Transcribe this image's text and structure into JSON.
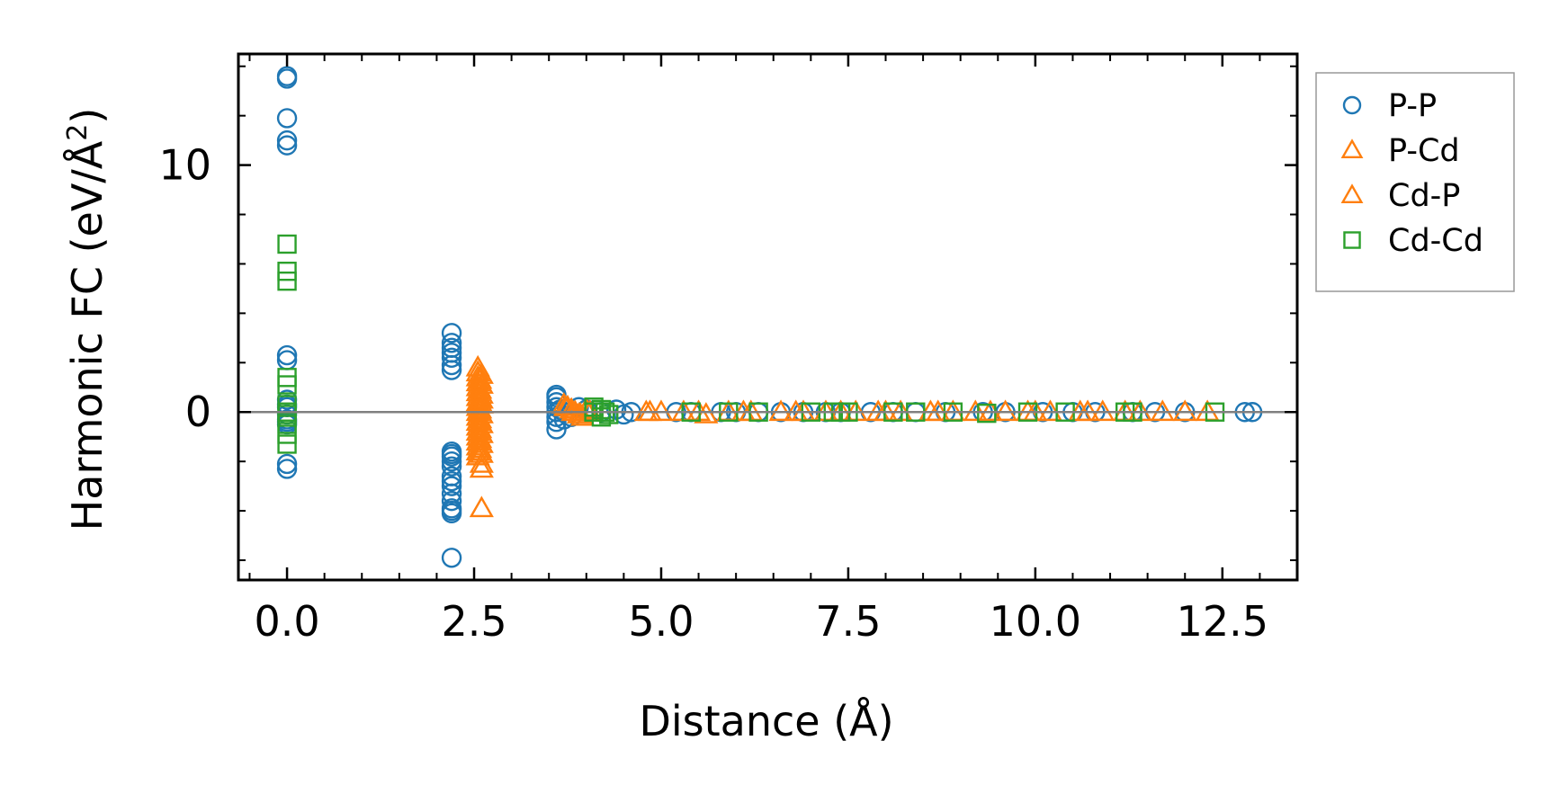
{
  "chart_data": {
    "type": "scatter",
    "title": "",
    "xlabel": "Distance (Å)",
    "ylabel_main": "Harmonic FC (eV/Å",
    "ylabel_sup": "2",
    "ylabel_close": ")",
    "xlim": [
      -0.65,
      13.5
    ],
    "ylim": [
      -6.8,
      14.5
    ],
    "xticks": [
      0.0,
      2.5,
      5.0,
      7.5,
      10.0,
      12.5
    ],
    "xtick_labels": [
      "0.0",
      "2.5",
      "5.0",
      "7.5",
      "10.0",
      "12.5"
    ],
    "yticks": [
      0,
      10
    ],
    "ytick_labels": [
      "0",
      "10"
    ],
    "zero_line": true,
    "grid": false,
    "legend_position": "outside-right",
    "series": [
      {
        "name": "P-P",
        "marker": "circle",
        "color": "#1f77b4",
        "x": [
          0,
          0,
          0,
          0,
          0,
          0,
          0,
          0,
          0,
          0,
          0,
          0,
          0,
          0,
          0,
          0,
          2.2,
          2.2,
          2.2,
          2.2,
          2.2,
          2.2,
          2.2,
          2.2,
          2.2,
          2.2,
          2.2,
          2.2,
          2.2,
          2.2,
          2.2,
          2.2,
          2.2,
          2.2,
          2.2,
          2.2,
          2.2,
          3.6,
          3.6,
          3.6,
          3.6,
          3.6,
          3.6,
          3.6,
          3.6,
          3.65,
          3.7,
          3.8,
          3.9,
          4.0,
          4.2,
          4.4,
          4.5,
          4.6,
          5.2,
          5.4,
          5.8,
          6.0,
          6.3,
          6.6,
          6.9,
          7.2,
          7.4,
          7.8,
          8.1,
          8.4,
          8.8,
          9.3,
          9.6,
          10.1,
          10.5,
          10.8,
          11.3,
          11.6,
          12.0,
          12.8,
          12.9
        ],
        "y": [
          13.6,
          13.5,
          11.9,
          11.0,
          10.8,
          2.3,
          2.1,
          0.5,
          0.3,
          0.2,
          -0.1,
          -0.4,
          -0.5,
          -2.1,
          -2.3,
          -0.3,
          3.2,
          2.8,
          2.6,
          2.4,
          2.2,
          1.9,
          1.7,
          -1.6,
          -1.8,
          -2.0,
          -2.2,
          -2.6,
          -2.8,
          -3.0,
          -3.3,
          -3.6,
          -3.9,
          -4.0,
          -4.1,
          -5.9,
          -1.7,
          0.7,
          0.6,
          0.4,
          0.2,
          0.0,
          -0.2,
          -0.4,
          -0.7,
          0.1,
          -0.3,
          -0.2,
          0.2,
          0.1,
          0.0,
          0.1,
          -0.1,
          0.0,
          0,
          0,
          0,
          0,
          0,
          0,
          0,
          0,
          0,
          0,
          0,
          0,
          0,
          0,
          0,
          0,
          0,
          0,
          0,
          0,
          0,
          0,
          0
        ]
      },
      {
        "name": "P-Cd",
        "marker": "triangle",
        "color": "#ff7f0e",
        "x": [
          2.55,
          2.55,
          2.55,
          2.55,
          2.55,
          2.55,
          2.55,
          2.55,
          2.55,
          2.55,
          2.55,
          2.55,
          2.55,
          2.55,
          2.55,
          2.55,
          2.55,
          2.55,
          2.55,
          2.6,
          2.6,
          2.6,
          2.6,
          2.6,
          2.6,
          2.6,
          2.6,
          2.6,
          2.6,
          2.6,
          2.6,
          2.6,
          3.7,
          3.75,
          3.8,
          3.85,
          3.9,
          3.95,
          4.0,
          4.05,
          4.8,
          5.0,
          5.3,
          5.6,
          5.9,
          6.2,
          6.6,
          6.9,
          7.2,
          7.6,
          7.9,
          8.2,
          8.6,
          8.9,
          9.2,
          9.6,
          9.9,
          10.2,
          10.6,
          10.9,
          11.2,
          11.7,
          12.0,
          12.3
        ],
        "y": [
          1.8,
          1.6,
          1.4,
          1.2,
          1.0,
          0.8,
          0.6,
          0.4,
          0.2,
          0.0,
          -0.2,
          -0.4,
          -0.6,
          -0.8,
          -1.0,
          -1.2,
          -1.4,
          -1.6,
          -1.8,
          1.5,
          1.1,
          0.7,
          0.3,
          -0.1,
          -0.5,
          -0.9,
          -1.3,
          -1.7,
          -2.1,
          -2.3,
          0.5,
          -3.9,
          0.3,
          0.2,
          0.1,
          0.0,
          -0.1,
          -0.2,
          0.1,
          0.0,
          0,
          0,
          0,
          -0.1,
          0,
          0,
          0,
          0,
          0,
          0,
          0,
          0,
          0,
          0,
          0,
          0,
          0,
          0,
          0,
          0,
          0,
          0,
          0,
          0
        ]
      },
      {
        "name": "Cd-P",
        "marker": "triangle",
        "color": "#ff7f0e",
        "x": [
          2.58,
          2.58,
          2.58,
          2.58,
          2.58,
          2.58,
          2.58,
          2.58,
          3.72,
          3.82,
          3.92,
          4.85,
          5.5,
          6.1,
          6.8,
          7.4,
          8.0,
          8.7,
          9.4,
          10.0,
          10.7,
          11.4
        ],
        "y": [
          1.3,
          0.9,
          0.5,
          0.1,
          -0.3,
          -0.7,
          -1.1,
          -1.5,
          0.2,
          0.0,
          -0.1,
          0,
          0,
          0,
          0,
          0,
          0,
          0,
          0,
          0,
          0,
          0
        ]
      },
      {
        "name": "Cd-Cd",
        "marker": "square",
        "color": "#2ca02c",
        "x": [
          0,
          0,
          0,
          0,
          0,
          0,
          0,
          0,
          0,
          0,
          0,
          4.1,
          4.1,
          4.2,
          4.2,
          4.25,
          4.3,
          5.4,
          5.9,
          6.3,
          7.0,
          7.3,
          7.4,
          7.5,
          8.1,
          8.4,
          8.9,
          9.35,
          9.9,
          10.4,
          11.2,
          11.3,
          12.4
        ],
        "y": [
          6.8,
          5.7,
          5.3,
          1.4,
          1.1,
          0.3,
          -0.1,
          -0.5,
          -0.9,
          -1.3,
          0.0,
          0.2,
          0.0,
          0.1,
          -0.2,
          0.0,
          -0.1,
          0,
          0,
          0,
          0,
          0,
          0,
          0,
          0,
          0,
          0,
          -0.05,
          0,
          0,
          0,
          0,
          0
        ]
      }
    ]
  }
}
